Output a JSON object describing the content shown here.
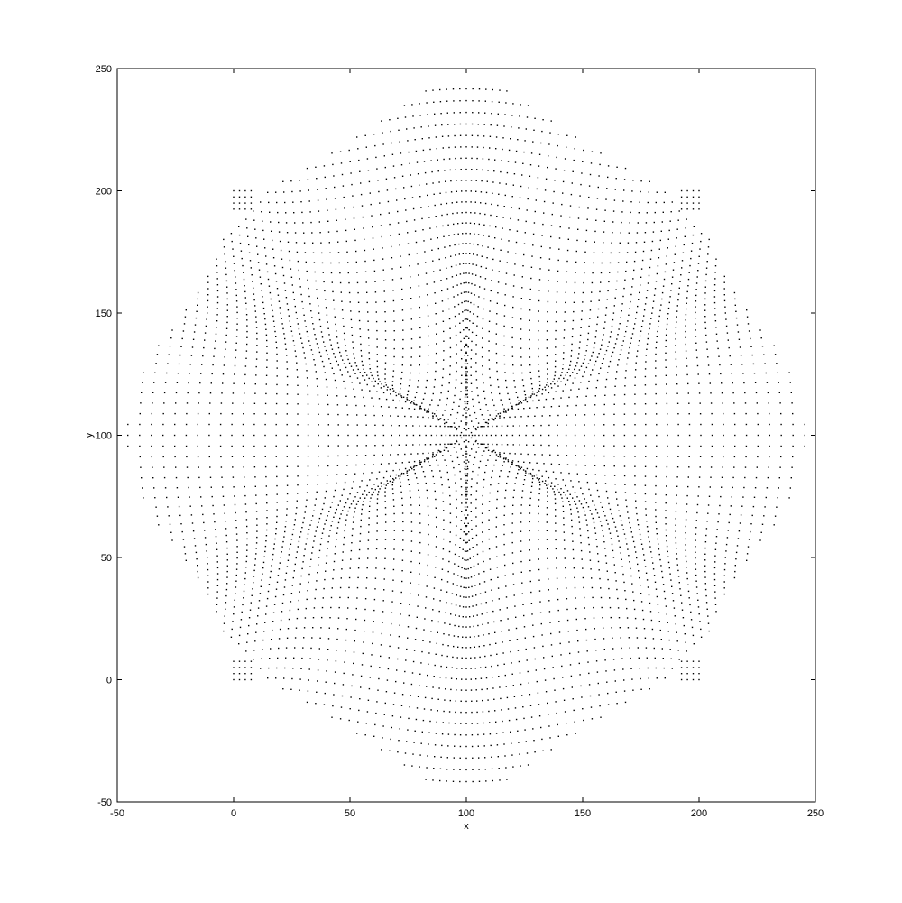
{
  "chart_data": {
    "type": "scatter",
    "title": "",
    "xlabel": "x",
    "ylabel": "y",
    "xlim": [
      -50,
      250
    ],
    "ylim": [
      -50,
      250
    ],
    "xticks": [
      -50,
      0,
      50,
      100,
      150,
      200,
      250
    ],
    "yticks": [
      -50,
      0,
      50,
      100,
      150,
      200,
      250
    ],
    "xtick_labels": [
      "-50",
      "0",
      "50",
      "100",
      "150",
      "200",
      "250"
    ],
    "ytick_labels": [
      "-50",
      "0",
      "50",
      "100",
      "150",
      "200",
      "250"
    ],
    "grid": false,
    "legend": "none",
    "point_color": "#000000",
    "description_of_points": "Dense scatter of the points of a uniform grid over the square [0,200]x[0,200] after a symmetric non-linear map centred at (100,100); the result is an eight-lobed rounded envelope (about -35..235 on both axes) with a six-pointed star pattern around the centre and leftover square corners at (0,0),(200,0),(0,200),(200,200).",
    "series": [
      {
        "name": "",
        "generator": "warped-grid",
        "grid_range": [
          0,
          200
        ],
        "center": [
          100,
          100
        ]
      }
    ]
  }
}
